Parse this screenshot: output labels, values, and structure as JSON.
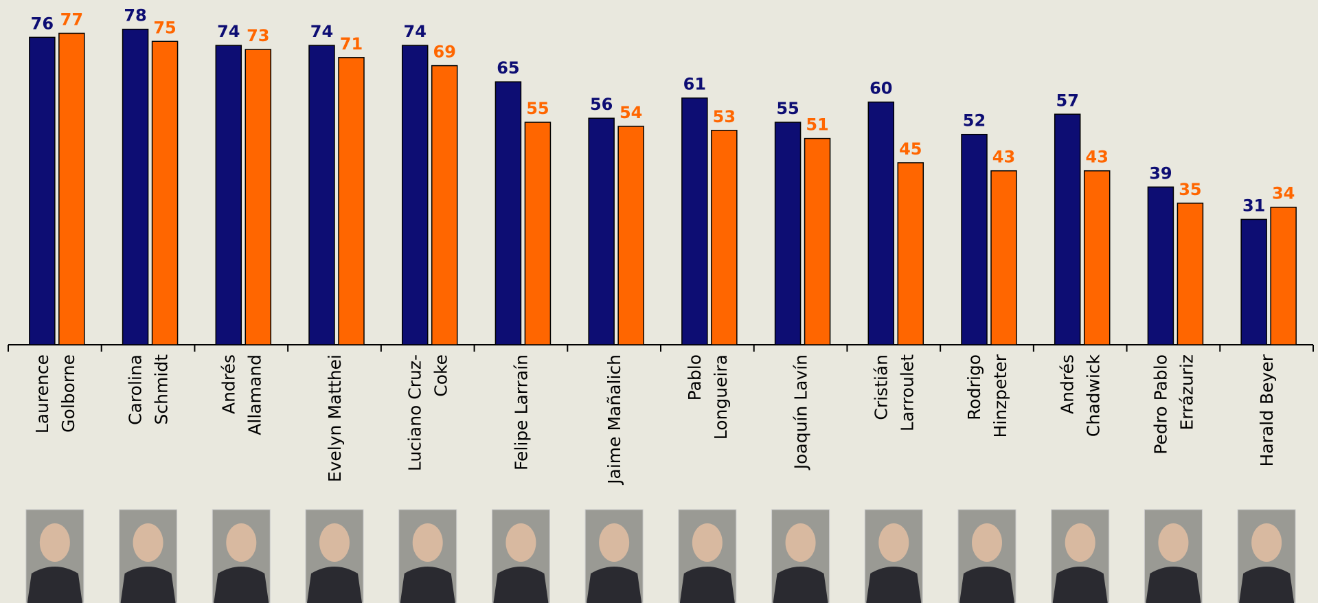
{
  "chart_data": {
    "type": "bar",
    "categories": [
      [
        "Laurence",
        "Golborne"
      ],
      [
        "Carolina",
        "Schmidt"
      ],
      [
        "Andrés",
        "Allamand"
      ],
      [
        "Evelyn Matthei"
      ],
      [
        "Luciano Cruz-",
        "Coke"
      ],
      [
        "Felipe Larraín"
      ],
      [
        "Jaime Mañalich"
      ],
      [
        "Pablo",
        "Longueira"
      ],
      [
        "Joaquín Lavín"
      ],
      [
        "Cristián",
        "Larroulet"
      ],
      [
        "Rodrigo",
        "Hinzpeter"
      ],
      [
        "Andrés",
        "Chadwick"
      ],
      [
        "Pedro Pablo",
        "Errázuriz"
      ],
      [
        "Harald Beyer"
      ]
    ],
    "series": [
      {
        "color": "#0d0d73",
        "values": [
          76,
          78,
          74,
          74,
          74,
          65,
          56,
          61,
          55,
          60,
          52,
          57,
          39,
          31
        ]
      },
      {
        "color": "#ff6600",
        "values": [
          77,
          75,
          73,
          71,
          69,
          55,
          54,
          53,
          51,
          45,
          43,
          43,
          35,
          34
        ]
      }
    ]
  }
}
